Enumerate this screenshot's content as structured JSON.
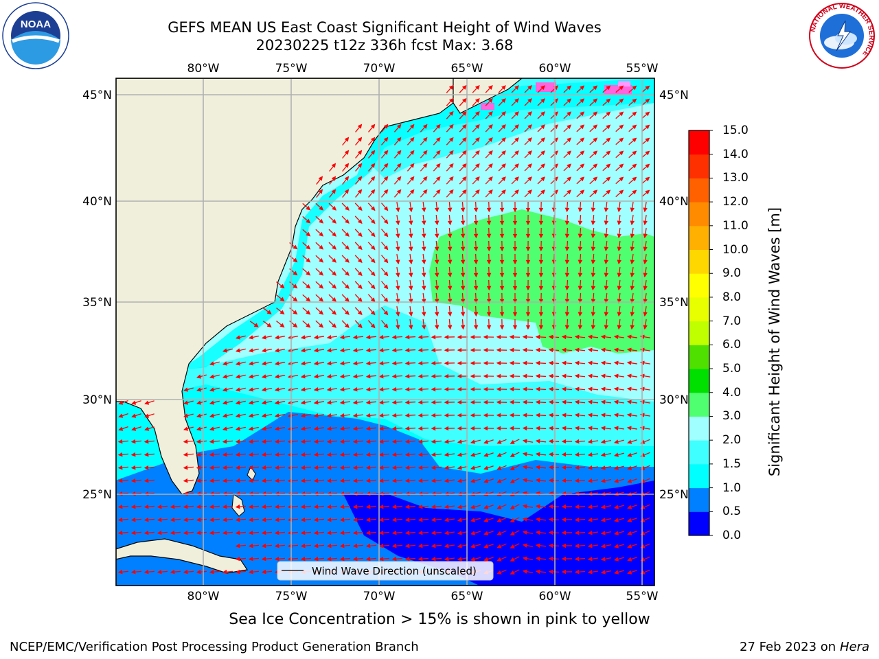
{
  "title_line1": "GEFS MEAN US East Coast Significant Height of Wind Waves",
  "title_line2": "20230225 t12z 336h fcst   Max: 3.68",
  "logos": {
    "left": {
      "name": "noaa-logo",
      "text": "NOAA"
    },
    "right": {
      "name": "national-weather-service-logo",
      "text": "NATIONAL WEATHER SERVICE"
    }
  },
  "map": {
    "lon_labels": [
      "80°W",
      "75°W",
      "70°W",
      "65°W",
      "60°W",
      "55°W"
    ],
    "lat_labels": [
      "45°N",
      "40°N",
      "35°N",
      "30°N",
      "25°N"
    ],
    "legend_text": "Wind Wave Direction (unscaled)",
    "arrow_color": "#ff0000",
    "land_color": "#efefdc",
    "grid_color": "#b0b0b0"
  },
  "colorbar": {
    "label": "Significant Height of Wind Waves [m]",
    "tick_labels": [
      "0.0",
      "0.5",
      "1.0",
      "1.5",
      "2.0",
      "3.0",
      "4.0",
      "5.0",
      "6.0",
      "7.0",
      "8.0",
      "9.0",
      "10.0",
      "11.0",
      "12.0",
      "13.0",
      "14.0",
      "15.0"
    ],
    "colors": [
      "#0000ff",
      "#0080ff",
      "#00ffff",
      "#40ffff",
      "#a0ffff",
      "#50ff70",
      "#00e000",
      "#50e000",
      "#c0ff00",
      "#e8ff00",
      "#ffff00",
      "#ffd700",
      "#ffb000",
      "#ff8c00",
      "#ff6000",
      "#ff3000",
      "#ff0000"
    ]
  },
  "footer_note": "Sea Ice Concentration > 15% is shown in pink to yellow",
  "footer_left": "NCEP/EMC/Verification Post Processing Product Generation Branch",
  "footer_right_date": "27 Feb 2023 on",
  "footer_right_machine": "Hera"
}
